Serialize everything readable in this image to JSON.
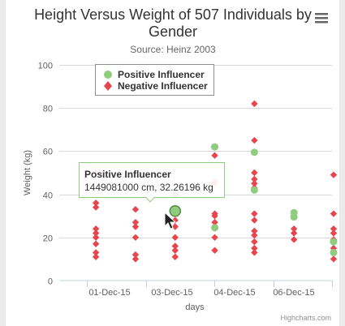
{
  "chart_data": {
    "type": "scatter",
    "title": "Height Versus Weight of 507 Individuals by Gender",
    "subtitle": "Source: Heinz 2003",
    "xlabel": "days",
    "ylabel": "Weight (kg)",
    "x_ticks": [
      "01-Dec-15",
      "03-Dec-15",
      "04-Dec-15",
      "06-Dec-15"
    ],
    "ylim": [
      0,
      100
    ],
    "y_ticks": [
      0,
      20,
      40,
      60,
      80,
      100
    ],
    "grid": true,
    "legend_position": "top-left",
    "series": [
      {
        "name": "Positive Influencer",
        "color": "#90cc7d",
        "marker": "circle",
        "points": [
          {
            "x": 2.7,
            "y": 32.26
          },
          {
            "x": 3.7,
            "y": 62.0
          },
          {
            "x": 3.7,
            "y": 24.5
          },
          {
            "x": 4.7,
            "y": 59.5
          },
          {
            "x": 4.7,
            "y": 42.0
          },
          {
            "x": 5.7,
            "y": 31.5
          },
          {
            "x": 5.7,
            "y": 29.5
          },
          {
            "x": 6.7,
            "y": 18.0
          },
          {
            "x": 6.7,
            "y": 13.0
          }
        ]
      },
      {
        "name": "Negative Influencer",
        "color": "#e8464e",
        "marker": "diamond",
        "points": [
          {
            "x": 0.7,
            "y": 50
          },
          {
            "x": 0.7,
            "y": 36
          },
          {
            "x": 0.7,
            "y": 34
          },
          {
            "x": 0.7,
            "y": 24
          },
          {
            "x": 0.7,
            "y": 22
          },
          {
            "x": 0.7,
            "y": 20
          },
          {
            "x": 0.7,
            "y": 17
          },
          {
            "x": 0.7,
            "y": 13
          },
          {
            "x": 0.7,
            "y": 11
          },
          {
            "x": 1.7,
            "y": 33
          },
          {
            "x": 1.7,
            "y": 27
          },
          {
            "x": 1.7,
            "y": 25
          },
          {
            "x": 1.7,
            "y": 20
          },
          {
            "x": 1.7,
            "y": 12
          },
          {
            "x": 1.7,
            "y": 10
          },
          {
            "x": 2.7,
            "y": 40
          },
          {
            "x": 2.7,
            "y": 28
          },
          {
            "x": 2.7,
            "y": 25
          },
          {
            "x": 2.7,
            "y": 20
          },
          {
            "x": 2.7,
            "y": 16
          },
          {
            "x": 2.7,
            "y": 14
          },
          {
            "x": 2.7,
            "y": 11
          },
          {
            "x": 3.7,
            "y": 58
          },
          {
            "x": 3.7,
            "y": 46
          },
          {
            "x": 3.7,
            "y": 45
          },
          {
            "x": 3.7,
            "y": 31
          },
          {
            "x": 3.7,
            "y": 30
          },
          {
            "x": 3.7,
            "y": 27
          },
          {
            "x": 3.7,
            "y": 20
          },
          {
            "x": 3.7,
            "y": 14
          },
          {
            "x": 4.7,
            "y": 82
          },
          {
            "x": 4.7,
            "y": 65
          },
          {
            "x": 4.7,
            "y": 50
          },
          {
            "x": 4.7,
            "y": 47
          },
          {
            "x": 4.7,
            "y": 45
          },
          {
            "x": 4.7,
            "y": 43
          },
          {
            "x": 4.7,
            "y": 31
          },
          {
            "x": 4.7,
            "y": 28
          },
          {
            "x": 4.7,
            "y": 23
          },
          {
            "x": 4.7,
            "y": 21
          },
          {
            "x": 4.7,
            "y": 18
          },
          {
            "x": 4.7,
            "y": 15
          },
          {
            "x": 4.7,
            "y": 13
          },
          {
            "x": 5.7,
            "y": 24
          },
          {
            "x": 5.7,
            "y": 22
          },
          {
            "x": 5.7,
            "y": 19
          },
          {
            "x": 6.7,
            "y": 49
          },
          {
            "x": 6.7,
            "y": 31
          },
          {
            "x": 6.7,
            "y": 24
          },
          {
            "x": 6.7,
            "y": 22
          },
          {
            "x": 6.7,
            "y": 19
          },
          {
            "x": 6.7,
            "y": 15
          },
          {
            "x": 6.7,
            "y": 10
          }
        ]
      }
    ],
    "tooltip": {
      "series_name": "Positive Influencer",
      "text": "1449081000 cm, 32.26196 kg"
    },
    "credits": "Highcharts.com"
  },
  "icons": {
    "menu": "hamburger-menu-icon"
  }
}
